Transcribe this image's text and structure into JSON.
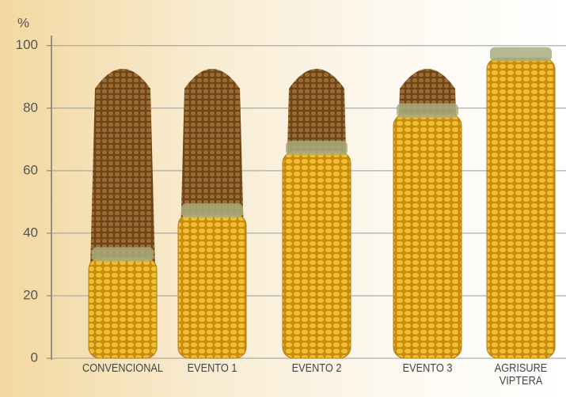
{
  "chart_data": {
    "type": "bar",
    "y_label": "%",
    "categories": [
      "CONVENCIONAL",
      "EVENTO 1",
      "EVENTO 2",
      "EVENTO 3",
      "AGRISURE VIPTERA"
    ],
    "values": [
      32,
      46,
      66,
      78,
      96
    ],
    "color": "#e8b020",
    "ylim": [
      0,
      105
    ],
    "yticks": [
      0,
      20,
      40,
      60,
      80,
      100
    ],
    "grid": true
  }
}
